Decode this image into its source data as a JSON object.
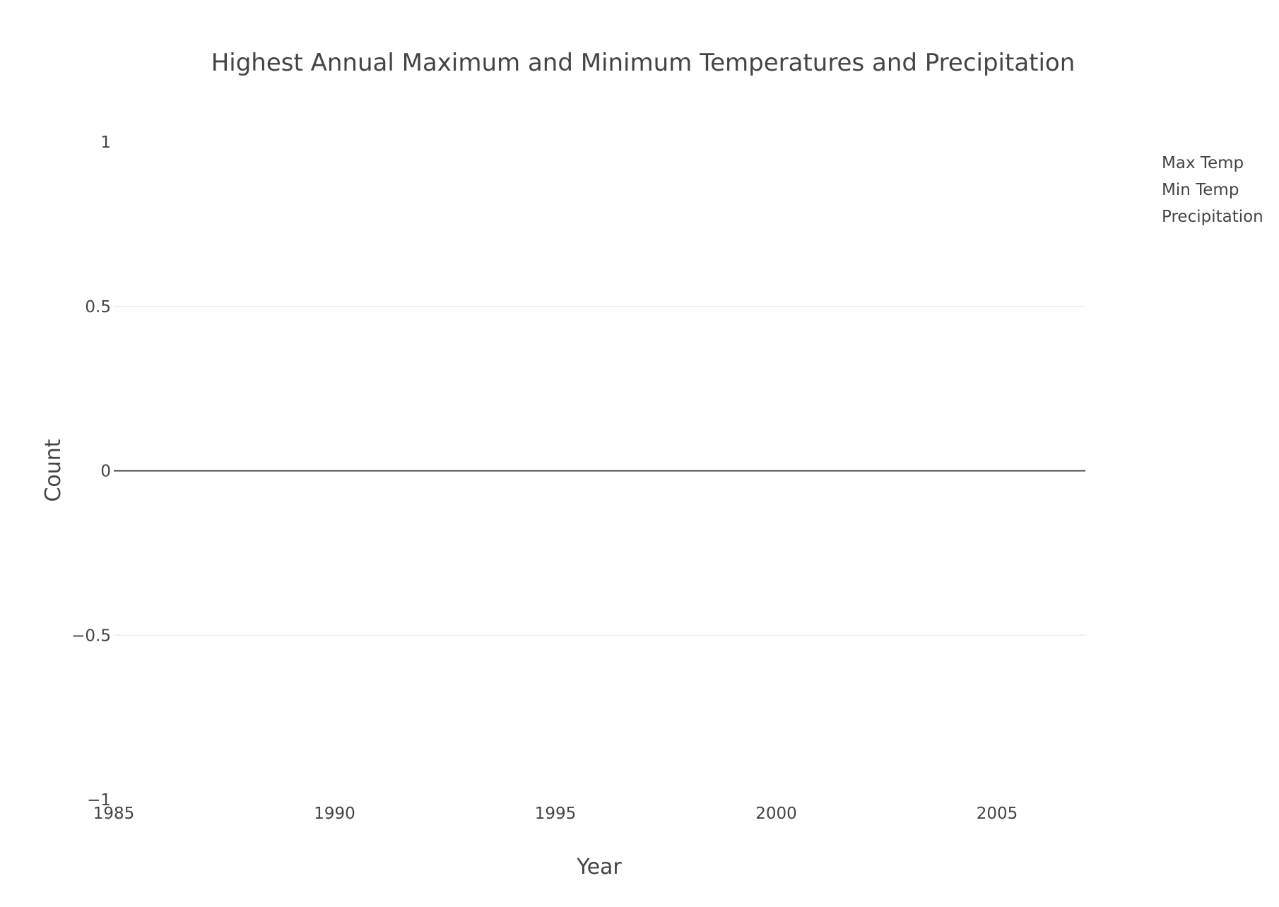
{
  "chart_data": {
    "type": "line",
    "title": "Highest Annual Maximum and Minimum Temperatures and Precipitation",
    "xlabel": "Year",
    "ylabel": "Count",
    "xlim": [
      1985,
      2007
    ],
    "ylim": [
      -1,
      1
    ],
    "x_ticks": [
      "1985",
      "1990",
      "1995",
      "2000",
      "2005"
    ],
    "y_ticks": [
      "1",
      "0.5",
      "0",
      "−0.5",
      "−1"
    ],
    "x_tick_values": [
      1985,
      1990,
      1995,
      2000,
      2005
    ],
    "y_tick_values": [
      1,
      0.5,
      0,
      -0.5,
      -1
    ],
    "grid": true,
    "legend_position": "top-right",
    "series": [
      {
        "name": "Max Temp",
        "x": [],
        "y": []
      },
      {
        "name": "Min Temp",
        "x": [],
        "y": []
      },
      {
        "name": "Precipitation",
        "x": [],
        "y": []
      }
    ]
  }
}
